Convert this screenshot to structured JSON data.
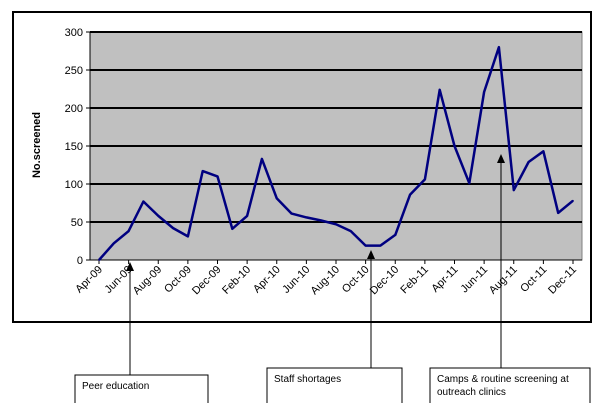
{
  "chart_data": {
    "type": "line",
    "ylabel": "No.screened",
    "xlabel": "",
    "ylim": [
      0,
      300
    ],
    "yticks": [
      0,
      50,
      100,
      150,
      200,
      250,
      300
    ],
    "grid": true,
    "legend": "none",
    "colors": {
      "line": "#000080",
      "plot_bg": "#c0c0c0",
      "grid": "#000000"
    },
    "x_tick_labels": [
      "Apr-09",
      "Jun-09",
      "Aug-09",
      "Oct-09",
      "Dec-09",
      "Feb-10",
      "Apr-10",
      "Jun-10",
      "Aug-10",
      "Oct-10",
      "Dec-10",
      "Feb-11",
      "Apr-11",
      "Jun-11",
      "Aug-11",
      "Oct-11",
      "Dec-11"
    ],
    "series": [
      {
        "values": [
          0,
          22,
          38,
          77,
          58,
          42,
          31,
          117,
          110,
          41,
          58,
          133,
          81,
          61,
          56,
          52,
          47,
          38,
          19,
          19,
          33,
          86,
          106,
          224,
          150,
          101,
          221,
          280,
          92,
          129,
          143,
          62,
          78
        ]
      }
    ],
    "annotations": [
      {
        "text": "Peer education",
        "month_index": 2
      },
      {
        "text": "Staff shortages",
        "month_index": 17
      },
      {
        "text": "Camps & routine screening at outreach clinics",
        "lines": [
          "Camps & routine screening at",
          "outreach clinics"
        ],
        "month_index": 27
      }
    ]
  }
}
